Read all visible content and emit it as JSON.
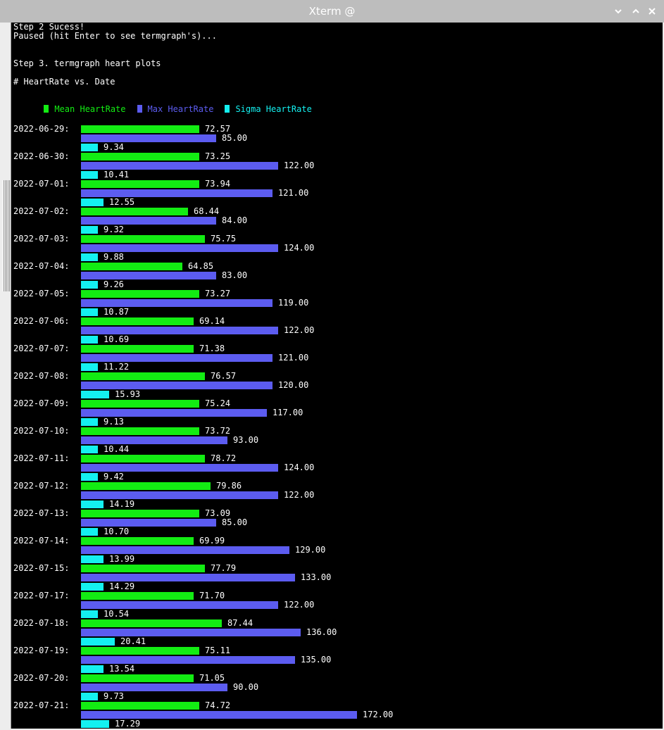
{
  "window": {
    "title": "Xterm @"
  },
  "terminal": {
    "lines": [
      "Step 2 Sucess!",
      "Paused (hit Enter to see termgraph's)...",
      "",
      "",
      "Step 3. termgraph heart plots",
      "",
      "# HeartRate vs. Date"
    ]
  },
  "chart_data": {
    "type": "bar",
    "orientation": "horizontal",
    "title": "# HeartRate vs. Date",
    "legend_position": "top-left",
    "categories": [
      "2022-06-29",
      "2022-06-30",
      "2022-07-01",
      "2022-07-02",
      "2022-07-03",
      "2022-07-04",
      "2022-07-05",
      "2022-07-06",
      "2022-07-07",
      "2022-07-08",
      "2022-07-09",
      "2022-07-10",
      "2022-07-11",
      "2022-07-12",
      "2022-07-13",
      "2022-07-14",
      "2022-07-15",
      "2022-07-17",
      "2022-07-18",
      "2022-07-19",
      "2022-07-20",
      "2022-07-21"
    ],
    "series": [
      {
        "name": "Mean HeartRate",
        "color": "#13ec13",
        "values": [
          72.57,
          73.25,
          73.94,
          68.44,
          75.75,
          64.85,
          73.27,
          69.14,
          71.38,
          76.57,
          75.24,
          73.72,
          78.72,
          79.86,
          73.09,
          69.99,
          77.79,
          71.7,
          87.44,
          75.11,
          71.05,
          74.72
        ]
      },
      {
        "name": "Max HeartRate",
        "color": "#5c5cf0",
        "values": [
          85.0,
          122.0,
          121.0,
          84.0,
          124.0,
          83.0,
          119.0,
          122.0,
          121.0,
          120.0,
          117.0,
          93.0,
          124.0,
          122.0,
          85.0,
          129.0,
          133.0,
          122.0,
          136.0,
          135.0,
          90.0,
          172.0
        ]
      },
      {
        "name": "Sigma HeartRate",
        "color": "#14f0f0",
        "values": [
          9.34,
          10.41,
          12.55,
          9.32,
          9.88,
          9.26,
          10.87,
          10.69,
          11.22,
          15.93,
          9.13,
          10.44,
          9.42,
          14.19,
          10.7,
          13.99,
          14.29,
          10.54,
          20.41,
          13.54,
          9.73,
          17.29
        ]
      }
    ]
  }
}
